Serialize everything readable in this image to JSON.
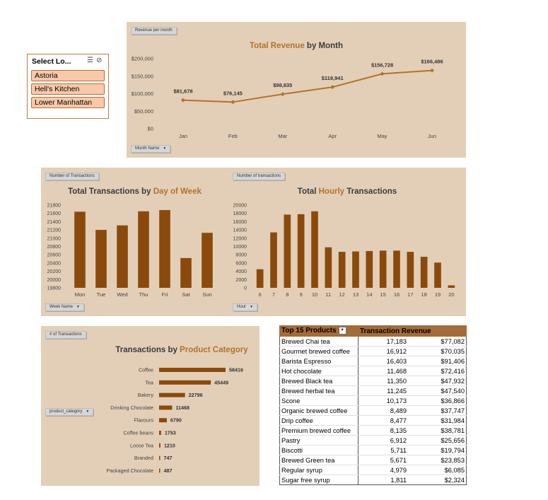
{
  "slicer": {
    "title": "Select Lo...",
    "items": [
      "Astoria",
      "Hell's Kitchen",
      "Lower Manhattan"
    ]
  },
  "revenue_chart": {
    "value_chip": "Revenue per month",
    "axis_chip": "Month Name",
    "title_plain": "by Month",
    "title_highlight": "Total Revenue"
  },
  "dow_chart": {
    "value_chip": "Number of Transactions",
    "axis_chip": "Week Name",
    "title_plain": "Total Transactions by",
    "title_highlight": "Day of Week"
  },
  "hourly_chart": {
    "value_chip": "Number of transactions",
    "axis_chip": "Hour",
    "title_pre": "Total",
    "title_highlight": "Hourly",
    "title_post": "Transactions"
  },
  "category_chart": {
    "value_chip": "# of Transactions",
    "axis_chip": "product_category",
    "title_plain": "Transactions by",
    "title_highlight": "Product Category"
  },
  "table": {
    "col1": "Top 15 Products",
    "col2": "Transaction Revenue",
    "rows": [
      {
        "name": "Brewed Chai tea",
        "count": "17,183",
        "revenue": "$77,082"
      },
      {
        "name": "Gourmet brewed coffee",
        "count": "16,912",
        "revenue": "$70,035"
      },
      {
        "name": "Barista Espresso",
        "count": "16,403",
        "revenue": "$91,406"
      },
      {
        "name": "Hot chocolate",
        "count": "11,468",
        "revenue": "$72,416"
      },
      {
        "name": "Brewed Black tea",
        "count": "11,350",
        "revenue": "$47,932"
      },
      {
        "name": "Brewed herbal tea",
        "count": "11,245",
        "revenue": "$47,540"
      },
      {
        "name": "Scone",
        "count": "10,173",
        "revenue": "$36,866"
      },
      {
        "name": "Organic brewed coffee",
        "count": "8,489",
        "revenue": "$37,747"
      },
      {
        "name": "Drip coffee",
        "count": "8,477",
        "revenue": "$31,984"
      },
      {
        "name": "Premium brewed coffee",
        "count": "8,135",
        "revenue": "$38,781"
      },
      {
        "name": "Pastry",
        "count": "6,912",
        "revenue": "$25,656"
      },
      {
        "name": "Biscotti",
        "count": "5,711",
        "revenue": "$19,794"
      },
      {
        "name": "Brewed Green tea",
        "count": "5,671",
        "revenue": "$23,853"
      },
      {
        "name": "Regular syrup",
        "count": "4,979",
        "revenue": "$6,085"
      },
      {
        "name": "Sugar free syrup",
        "count": "1,811",
        "revenue": "$2,324"
      }
    ]
  },
  "colors": {
    "panel": "#e3cfb7",
    "bar": "#8b4a0c",
    "line": "#b5722c",
    "accent": "#b5722c"
  },
  "chart_data": [
    {
      "type": "line",
      "title": "Total Revenue by Month",
      "categories": [
        "Jan",
        "Feb",
        "Mar",
        "Apr",
        "May",
        "Jun"
      ],
      "values": [
        81678,
        76145,
        98835,
        118941,
        156728,
        166486
      ],
      "labels": [
        "$81,678",
        "$76,145",
        "$98,835",
        "$118,941",
        "$156,728",
        "$166,486"
      ],
      "yticks": [
        "$0",
        "$50,000",
        "$100,000",
        "$150,000",
        "$200,000"
      ],
      "ylim": [
        0,
        200000
      ]
    },
    {
      "type": "bar",
      "title": "Total Transactions by Day of Week",
      "categories": [
        "Mon",
        "Tue",
        "Wed",
        "Thu",
        "Fri",
        "Sat",
        "Sun"
      ],
      "values": [
        21640,
        21200,
        21310,
        21650,
        21680,
        20520,
        21130
      ],
      "yticks": [
        "19800",
        "20000",
        "20200",
        "20400",
        "20600",
        "20800",
        "21000",
        "21200",
        "21400",
        "21600",
        "21800"
      ],
      "ylim": [
        19800,
        21800
      ]
    },
    {
      "type": "bar",
      "title": "Total Hourly Transactions",
      "categories": [
        "6",
        "7",
        "8",
        "9",
        "10",
        "11",
        "12",
        "13",
        "14",
        "15",
        "16",
        "17",
        "18",
        "19",
        "20"
      ],
      "values": [
        4500,
        13400,
        17700,
        17800,
        18500,
        9800,
        8700,
        8800,
        8900,
        9000,
        9000,
        8700,
        7500,
        6100,
        600
      ],
      "yticks": [
        "0",
        "2000",
        "4000",
        "6000",
        "8000",
        "10000",
        "12000",
        "14000",
        "16000",
        "18000",
        "20000"
      ],
      "ylim": [
        0,
        20000
      ]
    },
    {
      "type": "bar",
      "orientation": "horizontal",
      "title": "Transactions by Product Category",
      "categories": [
        "Coffee",
        "Tea",
        "Bakery",
        "Drinking Chocolate",
        "Flavours",
        "Coffee beans",
        "Loose Tea",
        "Branded",
        "Packaged Chocolate"
      ],
      "values": [
        58416,
        45449,
        22796,
        11468,
        6790,
        1753,
        1210,
        747,
        487
      ],
      "labels": [
        "58416",
        "45449",
        "22796",
        "11468",
        "6790",
        "1753",
        "1210",
        "747",
        "487"
      ]
    }
  ]
}
